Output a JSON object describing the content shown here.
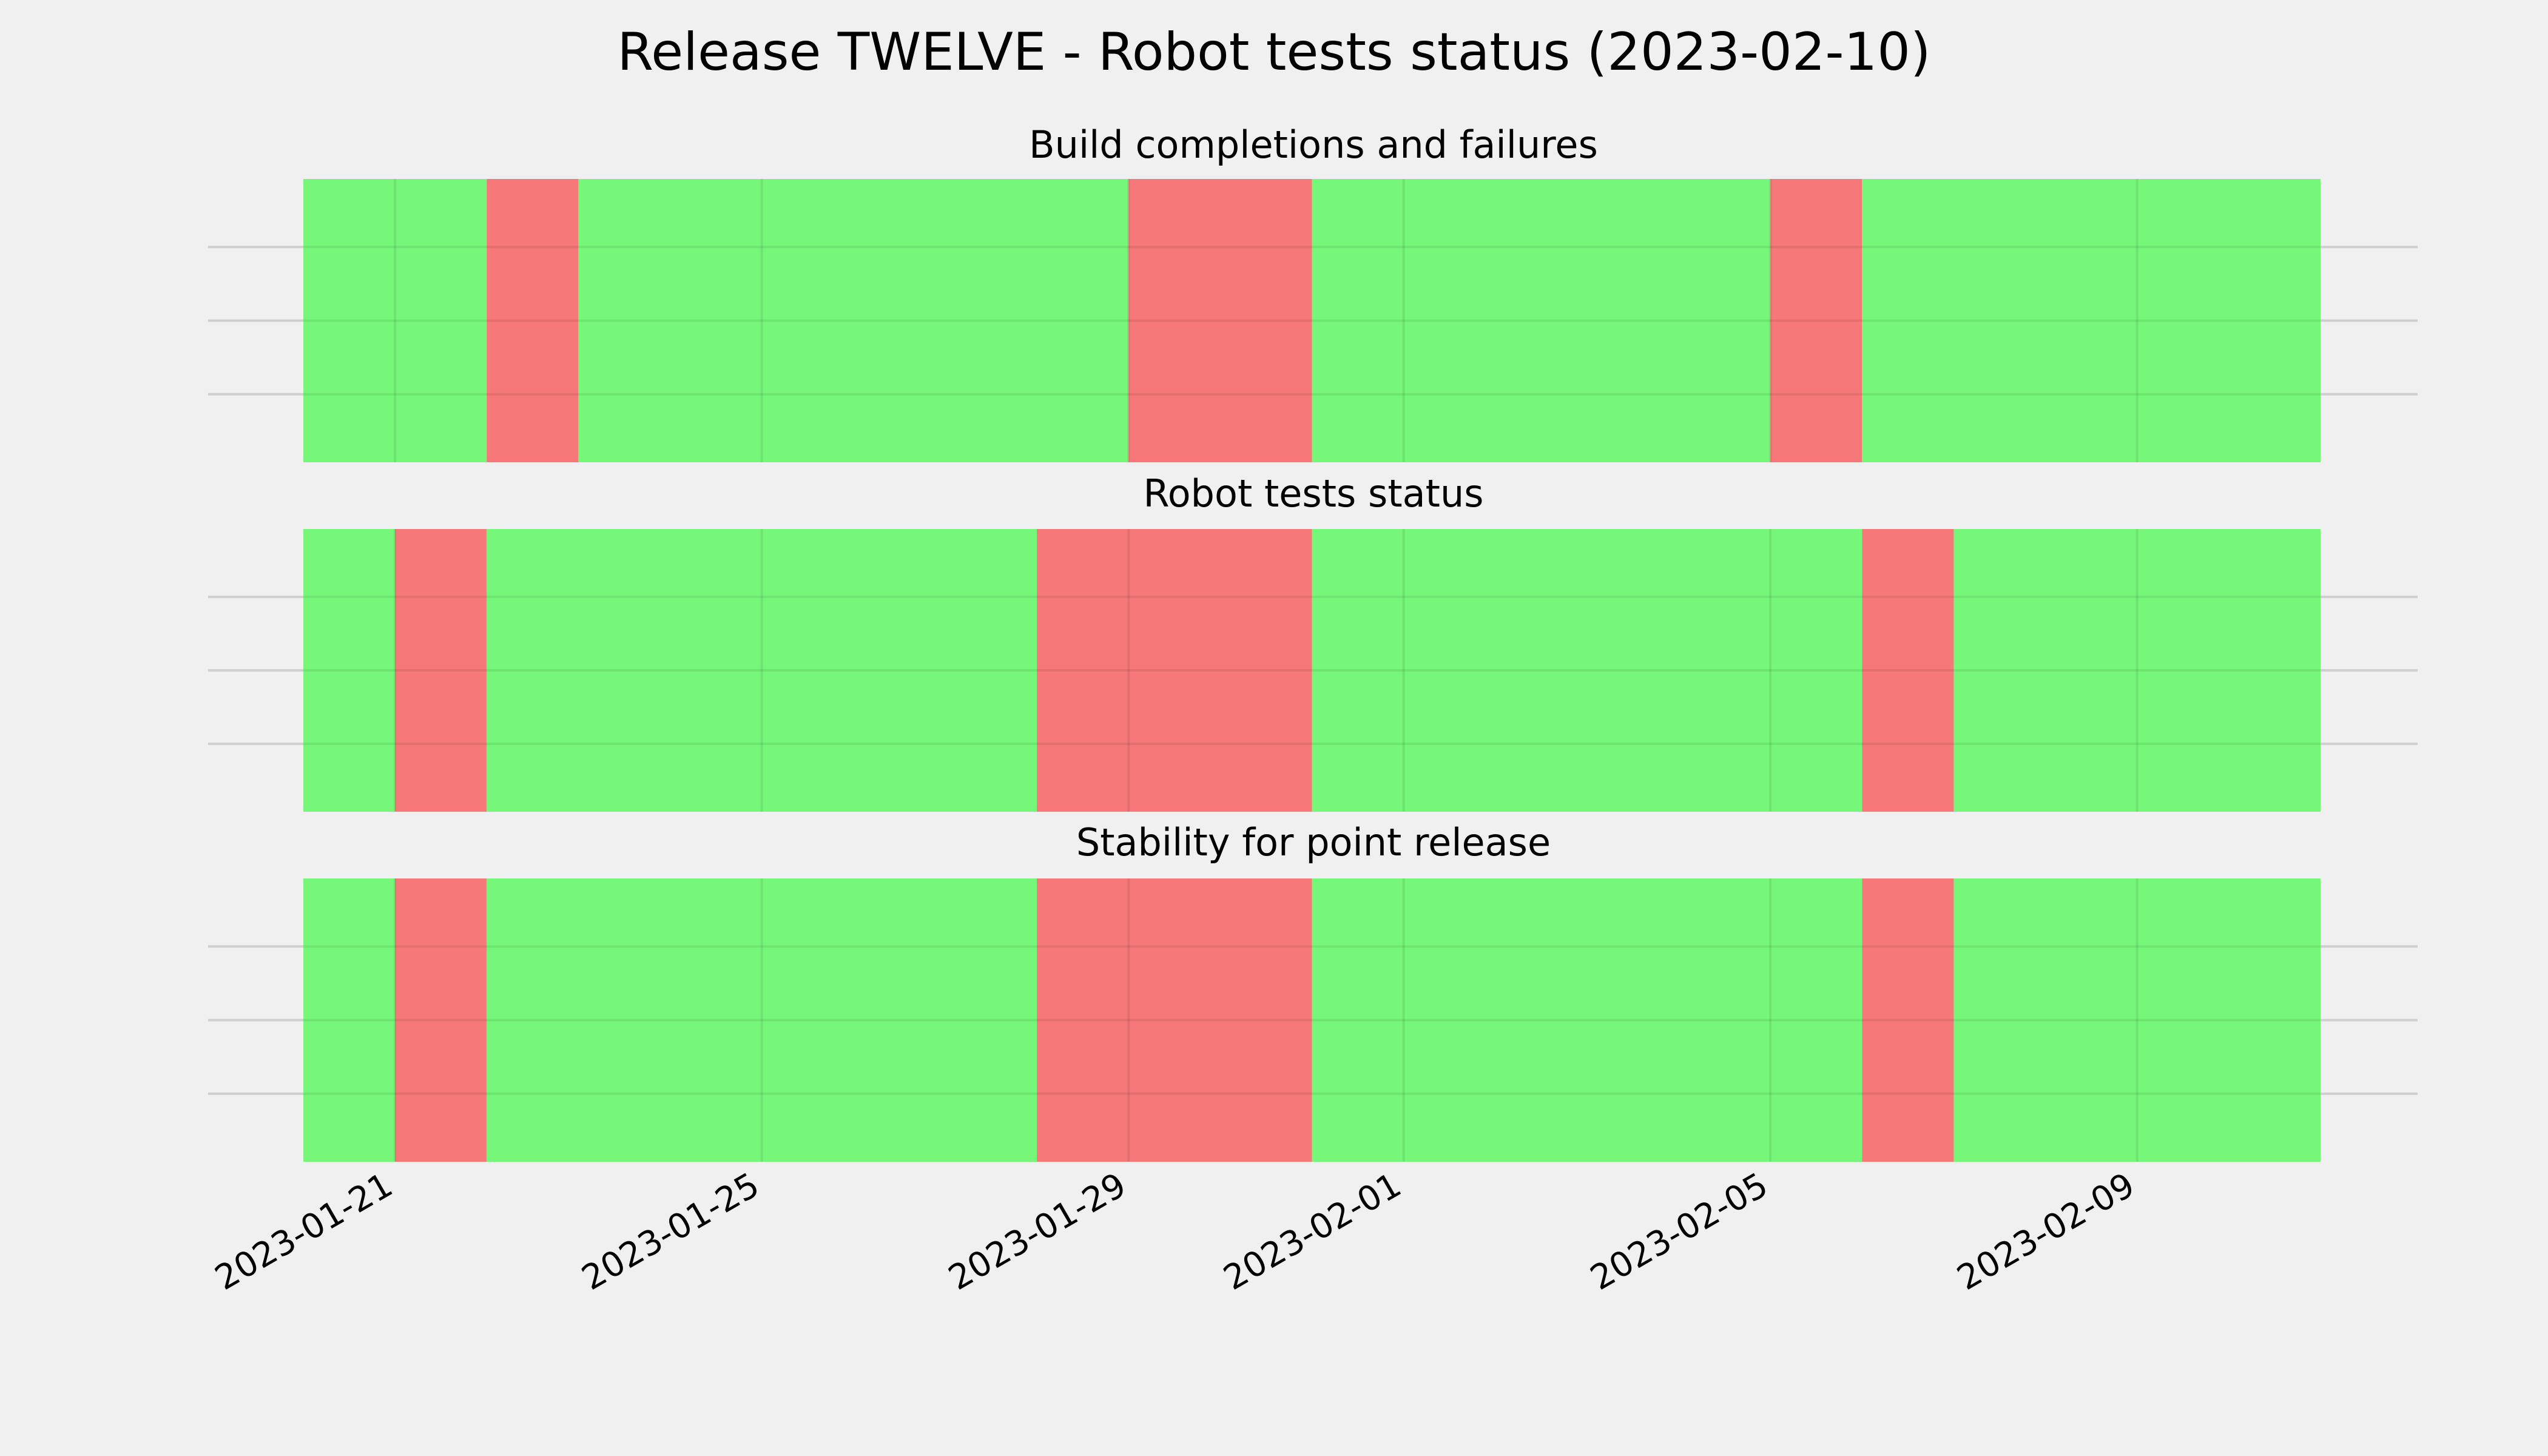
{
  "title": "Release TWELVE - Robot tests status (2023-02-10)",
  "colors": {
    "pass": "#77f77a",
    "fail": "#f67878",
    "background": "#f0f0f0",
    "grid": "#cfcfcf"
  },
  "chart_data": {
    "type": "timeline",
    "x_axis": {
      "type": "date",
      "range": [
        "2023-01-20",
        "2023-02-11"
      ],
      "ticks": [
        "2023-01-21",
        "2023-01-25",
        "2023-01-29",
        "2023-02-01",
        "2023-02-05",
        "2023-02-09"
      ],
      "tick_rotation": "30 degrees"
    },
    "grid": true,
    "panels": [
      {
        "title": "Build completions and failures",
        "segments": [
          {
            "start": "2023-01-20",
            "end": "2023-01-22",
            "status": "pass"
          },
          {
            "start": "2023-01-22",
            "end": "2023-01-23",
            "status": "fail"
          },
          {
            "start": "2023-01-23",
            "end": "2023-01-29",
            "status": "pass"
          },
          {
            "start": "2023-01-29",
            "end": "2023-01-31",
            "status": "fail"
          },
          {
            "start": "2023-01-31",
            "end": "2023-02-05",
            "status": "pass"
          },
          {
            "start": "2023-02-05",
            "end": "2023-02-06",
            "status": "fail"
          },
          {
            "start": "2023-02-06",
            "end": "2023-02-11",
            "status": "pass"
          }
        ]
      },
      {
        "title": "Robot tests status",
        "segments": [
          {
            "start": "2023-01-20",
            "end": "2023-01-21",
            "status": "pass"
          },
          {
            "start": "2023-01-21",
            "end": "2023-01-22",
            "status": "fail"
          },
          {
            "start": "2023-01-22",
            "end": "2023-01-28",
            "status": "pass"
          },
          {
            "start": "2023-01-28",
            "end": "2023-01-31",
            "status": "fail"
          },
          {
            "start": "2023-01-31",
            "end": "2023-02-06",
            "status": "pass"
          },
          {
            "start": "2023-02-06",
            "end": "2023-02-07",
            "status": "fail"
          },
          {
            "start": "2023-02-07",
            "end": "2023-02-11",
            "status": "pass"
          }
        ]
      },
      {
        "title": "Stability for point release",
        "segments": [
          {
            "start": "2023-01-20",
            "end": "2023-01-21",
            "status": "pass"
          },
          {
            "start": "2023-01-21",
            "end": "2023-01-22",
            "status": "fail"
          },
          {
            "start": "2023-01-22",
            "end": "2023-01-28",
            "status": "pass"
          },
          {
            "start": "2023-01-28",
            "end": "2023-01-31",
            "status": "fail"
          },
          {
            "start": "2023-01-31",
            "end": "2023-02-06",
            "status": "pass"
          },
          {
            "start": "2023-02-06",
            "end": "2023-02-07",
            "status": "fail"
          },
          {
            "start": "2023-02-07",
            "end": "2023-02-11",
            "status": "pass"
          }
        ]
      }
    ]
  }
}
